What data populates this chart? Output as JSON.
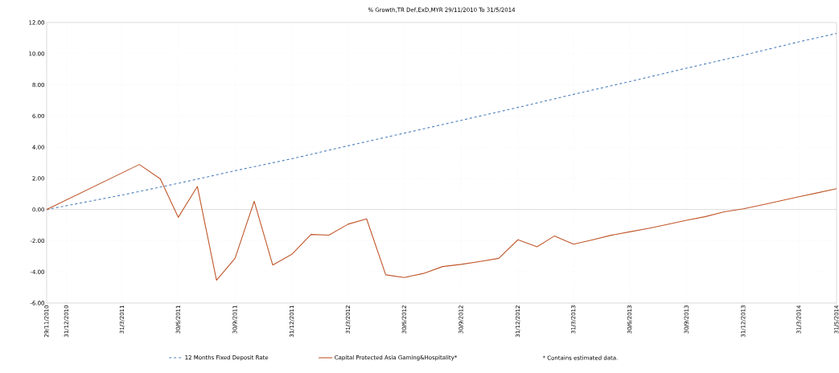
{
  "chart_data": {
    "type": "line",
    "title": "% Growth,TR Def,ExD,MYR 29/11/2010 To 31/5/2014",
    "series": [
      {
        "name": "12 Months Fixed Deposit Rate",
        "color": "#4a7ebb",
        "line_style": "dashed",
        "x": [
          "2010-11-29",
          "2011-03-31",
          "2011-06-30",
          "2011-09-30",
          "2011-12-31",
          "2012-03-31",
          "2012-06-30",
          "2012-09-30",
          "2012-12-31",
          "2013-03-31",
          "2013-06-30",
          "2013-09-30",
          "2013-12-31",
          "2014-03-31",
          "2014-05-31"
        ],
        "values": [
          0,
          0.93,
          1.68,
          2.49,
          3.26,
          4.09,
          4.9,
          5.72,
          6.55,
          7.39,
          8.21,
          9.07,
          9.9,
          10.76,
          11.3
        ]
      },
      {
        "name": "Capital Protected Asia Gaming&Hospitality*",
        "color": "#c0562a",
        "line_style": "solid",
        "x": [
          "2010-11-29",
          "2011-04-28",
          "2011-06-01",
          "2011-06-30",
          "2011-07-31",
          "2011-08-31",
          "2011-09-30",
          "2011-10-31",
          "2011-11-30",
          "2011-12-31",
          "2012-01-31",
          "2012-02-29",
          "2012-03-31",
          "2012-04-30",
          "2012-05-31",
          "2012-06-30",
          "2012-07-31",
          "2012-08-31",
          "2012-09-30",
          "2012-10-31",
          "2012-11-30",
          "2012-12-31",
          "2013-01-31",
          "2013-02-28",
          "2013-03-31",
          "2013-04-30",
          "2013-05-31",
          "2013-06-30",
          "2013-07-31",
          "2013-08-31",
          "2013-09-30",
          "2013-10-31",
          "2013-11-30",
          "2013-12-31",
          "2014-01-31",
          "2014-02-28",
          "2014-03-31",
          "2014-04-30",
          "2014-05-31"
        ],
        "values": [
          0,
          2.89,
          1.97,
          -0.5,
          1.48,
          -4.54,
          -3.13,
          0.53,
          -3.56,
          -2.87,
          -1.6,
          -1.64,
          -0.94,
          -0.6,
          -4.19,
          -4.36,
          -4.1,
          -3.66,
          -3.52,
          -3.33,
          -3.13,
          -1.94,
          -2.39,
          -1.7,
          -2.22,
          -1.95,
          -1.65,
          -1.43,
          -1.2,
          -0.95,
          -0.69,
          -0.45,
          -0.15,
          0.05,
          0.3,
          0.55,
          0.82,
          1.07,
          1.34
        ]
      }
    ],
    "xlim": [
      "2010-11-29",
      "2014-05-31"
    ],
    "xticks": [
      {
        "value": "2010-11-29",
        "label": "29/11/2010"
      },
      {
        "value": "2010-12-31",
        "label": "31/12/2010"
      },
      {
        "value": "2011-03-31",
        "label": "31/3/2011"
      },
      {
        "value": "2011-06-30",
        "label": "30/6/2011"
      },
      {
        "value": "2011-09-30",
        "label": "30/9/2011"
      },
      {
        "value": "2011-12-31",
        "label": "31/12/2011"
      },
      {
        "value": "2012-03-31",
        "label": "31/3/2012"
      },
      {
        "value": "2012-06-30",
        "label": "30/6/2012"
      },
      {
        "value": "2012-09-30",
        "label": "30/9/2012"
      },
      {
        "value": "2012-12-31",
        "label": "31/12/2012"
      },
      {
        "value": "2013-03-31",
        "label": "31/3/2013"
      },
      {
        "value": "2013-06-30",
        "label": "30/6/2013"
      },
      {
        "value": "2013-09-30",
        "label": "30/9/2013"
      },
      {
        "value": "2013-12-31",
        "label": "31/12/2013"
      },
      {
        "value": "2014-03-31",
        "label": "31/3/2014"
      },
      {
        "value": "2014-05-31",
        "label": "31/5/2014"
      }
    ],
    "ylim": [
      -6,
      12
    ],
    "yticks": [
      {
        "value": -6,
        "label": "-6.00"
      },
      {
        "value": -4,
        "label": "-4.00"
      },
      {
        "value": -2,
        "label": "-2.00"
      },
      {
        "value": 0,
        "label": "0.00"
      },
      {
        "value": 2,
        "label": "2.00"
      },
      {
        "value": 4,
        "label": "4.00"
      },
      {
        "value": 6,
        "label": "6.00"
      },
      {
        "value": 8,
        "label": "8.00"
      },
      {
        "value": 10,
        "label": "10.00"
      },
      {
        "value": 12,
        "label": "12.00"
      }
    ],
    "grid": true,
    "legend": "bottom",
    "annotations": [
      "* Contains estimated data."
    ]
  }
}
